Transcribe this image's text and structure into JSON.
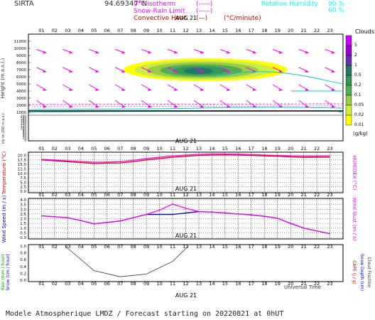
{
  "header": {
    "station": "SIRTA",
    "coord": "94.69347°N",
    "legend_left": [
      {
        "label": "0°C isotherm",
        "style": "(-----)",
        "color": "#ff00ff"
      },
      {
        "label": "Snow-Rain Limit",
        "style": "(-----)",
        "color": "#ff00ff"
      },
      {
        "label": "Convective Heat.",
        "style": "(—)",
        "color": "#cc0000",
        "unit": "(°C/minute)"
      }
    ],
    "legend_right": [
      {
        "label": "Relative Humidity",
        "value": "90 %",
        "color": "#00ffff"
      },
      {
        "label": "",
        "value": "60 %",
        "color": "#00ffff"
      }
    ]
  },
  "hours": [
    "01",
    "02",
    "03",
    "04",
    "05",
    "06",
    "07",
    "08",
    "09",
    "10",
    "11",
    "12",
    "13",
    "14",
    "15",
    "16",
    "17",
    "18",
    "19",
    "20",
    "21",
    "22",
    "23"
  ],
  "date_label": "AUG 21",
  "footer": {
    "universal_time": "Universal Time",
    "model_text": "Modele Atmospherique LMDZ / Forecast starting on 20220821 at 0hUT"
  },
  "colors": {
    "magenta": "#ff00ff",
    "cyan": "#00ffff",
    "red": "#dd0000",
    "blue": "#0000cc",
    "cloud_levels": [
      "#ffff00",
      "#ccee44",
      "#99cc44",
      "#55aa55",
      "#339955",
      "#227766",
      "#6633aa",
      "#9900cc",
      "#cc00ff"
    ]
  },
  "chart_data": [
    {
      "type": "heatmap",
      "title": "Clouds",
      "ylabel": "Height (m a.s.l.)",
      "ylabel2": "Up to 200 m a.s.l.",
      "yticks_upper": [
        1000,
        2000,
        3000,
        4000,
        5000,
        6000,
        7000,
        8000,
        9000,
        10000,
        11000
      ],
      "yticks_lower": [
        0,
        10,
        20,
        30,
        40,
        50,
        60,
        70,
        80,
        90,
        100,
        110,
        120,
        130,
        140,
        150,
        160,
        170,
        180,
        190,
        200
      ],
      "colorbar_labels": [
        "0.01",
        "0.02",
        "0.05",
        "0.1",
        "0.2",
        "0.5",
        "1",
        "2",
        "5"
      ],
      "colorbar_unit": "(g/kg)",
      "cloud_layer": {
        "x_start": 8.0,
        "x_end": 20.5,
        "y_base": 5600,
        "y_top": 8400,
        "peak_x": 13.5
      }
    },
    {
      "type": "line",
      "title": "",
      "ylabel": "Temperature (°C)",
      "ylabel2": "HUMIDEX (°C)",
      "yticks": [
        "0.0",
        "2.5",
        "5.0",
        "7.5",
        "10.0",
        "12.5",
        "15.0",
        "17.5",
        "20.0"
      ],
      "ylim": [
        0,
        21
      ],
      "x": [
        1,
        2,
        3,
        4,
        5,
        6,
        7,
        8,
        9,
        10,
        11,
        12,
        13,
        14,
        15,
        16,
        17,
        18,
        19,
        20,
        21,
        22,
        23
      ],
      "series": [
        {
          "name": "Temperature",
          "color": "#dd0000",
          "values": [
            17.5,
            17.0,
            16.5,
            16.0,
            15.5,
            15.7,
            15.8,
            16.5,
            17.5,
            18.2,
            19.0,
            19.5,
            20.0,
            20.2,
            20.3,
            20.2,
            20.0,
            19.7,
            19.5,
            19.2,
            18.9,
            19.0,
            19.0
          ]
        },
        {
          "name": "HUMIDEX",
          "color": "#ff00ff",
          "values": [
            17.8,
            17.4,
            17.0,
            16.6,
            16.2,
            16.3,
            16.5,
            17.3,
            18.2,
            19.0,
            19.7,
            20.2,
            20.6,
            20.8,
            20.8,
            20.7,
            20.5,
            20.2,
            20.0,
            19.8,
            19.6,
            19.6,
            19.7
          ]
        }
      ]
    },
    {
      "type": "line",
      "title": "",
      "ylabel": "Wind Speed (m / s)",
      "ylabel2": "Wind Gust (m / s)",
      "yticks": [
        "0.0",
        "0.5",
        "1.0",
        "1.5",
        "2.0",
        "2.5",
        "3.0",
        "3.5",
        "4.0"
      ],
      "ylim": [
        0,
        4
      ],
      "x": [
        1,
        2,
        3,
        4,
        5,
        6,
        7,
        8,
        9,
        10,
        11,
        12,
        13,
        14,
        15,
        16,
        17,
        18,
        19,
        20,
        21,
        22,
        23
      ],
      "series": [
        {
          "name": "Wind Speed",
          "color": "#0000cc",
          "values": [
            2.3,
            2.2,
            2.1,
            1.8,
            1.45,
            1.6,
            1.75,
            2.1,
            2.45,
            2.45,
            2.45,
            2.6,
            2.75,
            2.7,
            2.6,
            2.5,
            2.4,
            2.25,
            2.05,
            1.5,
            1.0,
            0.7,
            0.4
          ]
        },
        {
          "name": "Wind Gust",
          "color": "#ff00ff",
          "values": [
            2.3,
            2.2,
            2.1,
            1.8,
            1.45,
            1.6,
            1.75,
            2.1,
            2.45,
            2.9,
            3.55,
            3.1,
            2.75,
            2.7,
            2.6,
            2.5,
            2.4,
            2.25,
            2.05,
            1.5,
            1.0,
            0.7,
            0.4
          ]
        }
      ]
    },
    {
      "type": "line",
      "title": "",
      "ylabel": "Rain (mm / hour)",
      "ylabel2": "Snow (cm / hour)",
      "ylabel3": "CAPE (J / g)",
      "ylabel4": "Snow Depth (cm)",
      "ylabel5": "Cloud Fraction",
      "yticks": [
        "0.0",
        "0.2",
        "0.4",
        "0.6",
        "0.8",
        "1.0"
      ],
      "ylim": [
        0,
        1
      ],
      "x": [
        2.8,
        5,
        7,
        9,
        11,
        12.2
      ],
      "series": [
        {
          "name": "Cloud Fraction",
          "color": "#333333",
          "values": [
            1.0,
            0.28,
            0.1,
            0.18,
            0.55,
            1.0
          ]
        }
      ]
    }
  ]
}
